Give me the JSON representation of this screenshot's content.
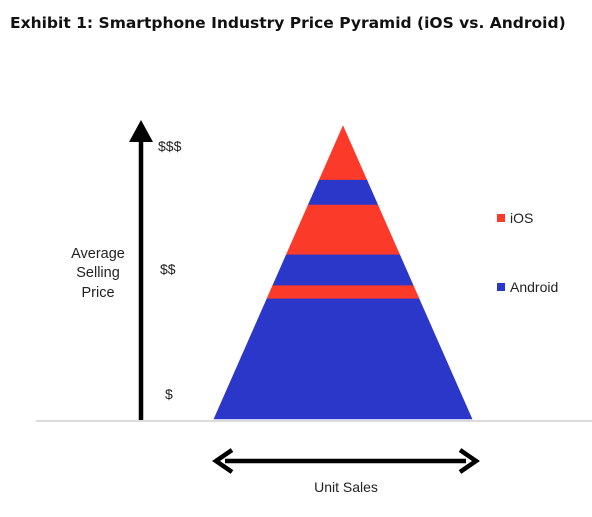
{
  "title": "Exhibit 1: Smartphone Industry Price Pyramid (iOS vs. Android)",
  "y_axis": {
    "label_lines": [
      "Average",
      "Selling",
      "Price"
    ],
    "levels": [
      "$$$",
      "$$",
      "$"
    ]
  },
  "x_axis": {
    "label": "Unit Sales"
  },
  "legend": [
    {
      "name": "iOS",
      "color": "#fb3a2a"
    },
    {
      "name": "Android",
      "color": "#2b37c9"
    }
  ],
  "pyramid_bands": [
    {
      "series": "iOS",
      "from": 0.0,
      "to": 0.185
    },
    {
      "series": "Android",
      "from": 0.185,
      "to": 0.27
    },
    {
      "series": "iOS",
      "from": 0.27,
      "to": 0.44
    },
    {
      "series": "Android",
      "from": 0.44,
      "to": 0.545
    },
    {
      "series": "iOS",
      "from": 0.545,
      "to": 0.59
    },
    {
      "series": "Android",
      "from": 0.59,
      "to": 1.0
    }
  ]
}
